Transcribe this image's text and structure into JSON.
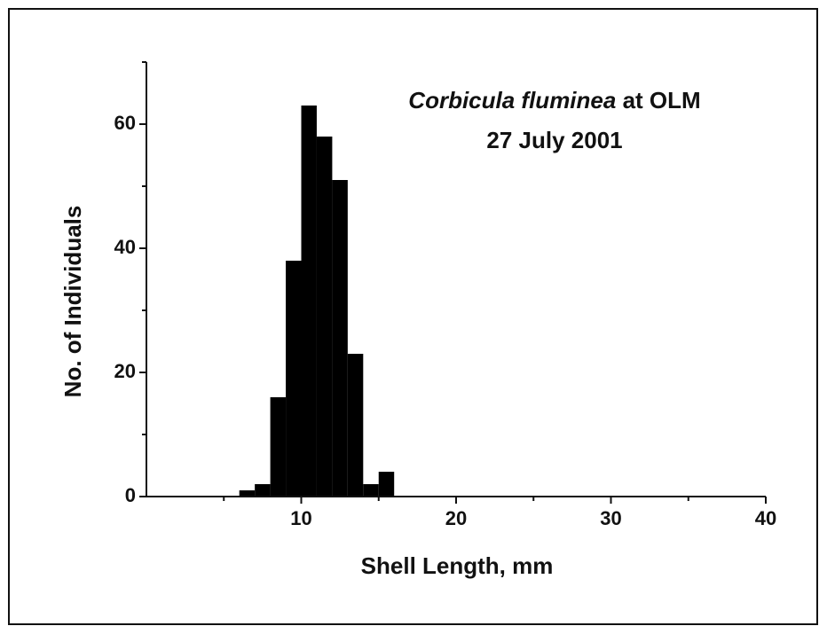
{
  "chart_data": {
    "type": "histogram",
    "title_parts": [
      {
        "text": "Corbicula fluminea",
        "italic": true
      },
      {
        "text": " at OLM",
        "italic": false
      }
    ],
    "subtitle": "27 July 2001",
    "xlabel": "Shell Length, mm",
    "ylabel": "No. of Individuals",
    "bins": [
      6,
      7,
      8,
      9,
      10,
      11,
      12,
      13,
      14,
      15,
      16
    ],
    "values": [
      1,
      2,
      16,
      38,
      63,
      58,
      51,
      23,
      2,
      4
    ],
    "color": "#000000",
    "xlim": [
      0,
      40
    ],
    "xticks": [
      10,
      20,
      30,
      40
    ],
    "xminorticks": [
      5,
      15,
      25,
      35
    ],
    "ylim": [
      0,
      70
    ],
    "yticks": [
      0,
      20,
      40,
      60
    ],
    "yminorticks": [
      10,
      30,
      50,
      70
    ],
    "grid": false
  }
}
